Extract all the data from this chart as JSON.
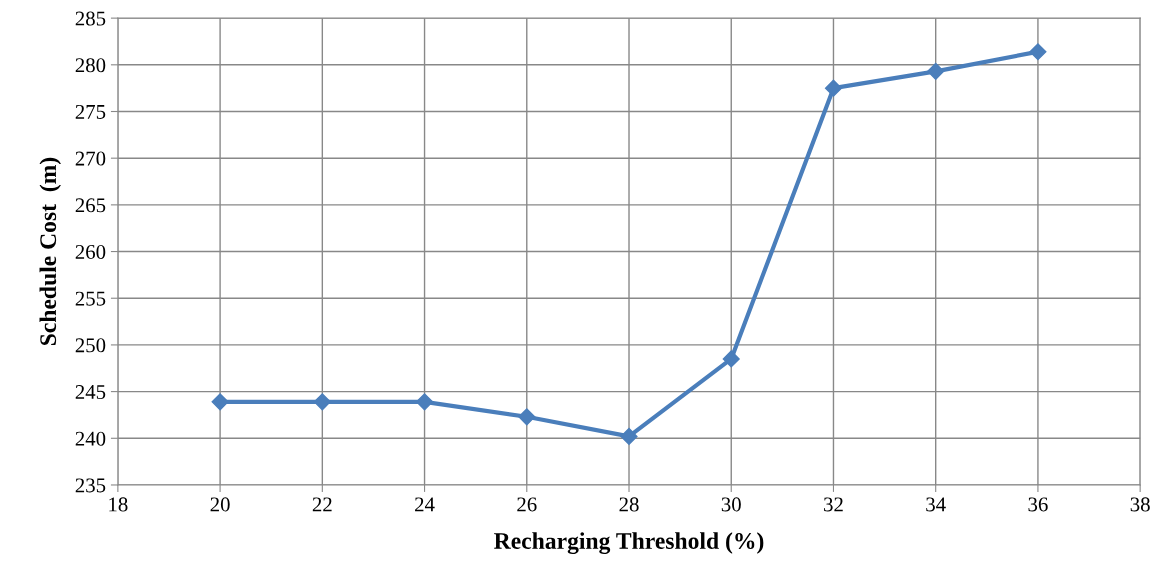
{
  "chart_data": {
    "type": "line",
    "xlabel": "Recharging Threshold (%)",
    "ylabel": "Schedule Cost  (m)",
    "x": [
      20,
      22,
      24,
      26,
      28,
      30,
      32,
      34,
      36
    ],
    "series": [
      {
        "color": "#4a7ebb",
        "values": [
          243.9,
          243.9,
          243.9,
          242.3,
          240.2,
          248.5,
          277.5,
          279.3,
          281.4
        ]
      }
    ],
    "xlim": [
      18,
      38
    ],
    "xticks": [
      18,
      20,
      22,
      24,
      26,
      28,
      30,
      32,
      34,
      36,
      38
    ],
    "ylim": [
      235,
      285
    ],
    "yticks": [
      235,
      240,
      245,
      250,
      255,
      260,
      265,
      270,
      275,
      280,
      285
    ],
    "grid": true,
    "marker": "diamond",
    "line_style": "solid"
  }
}
